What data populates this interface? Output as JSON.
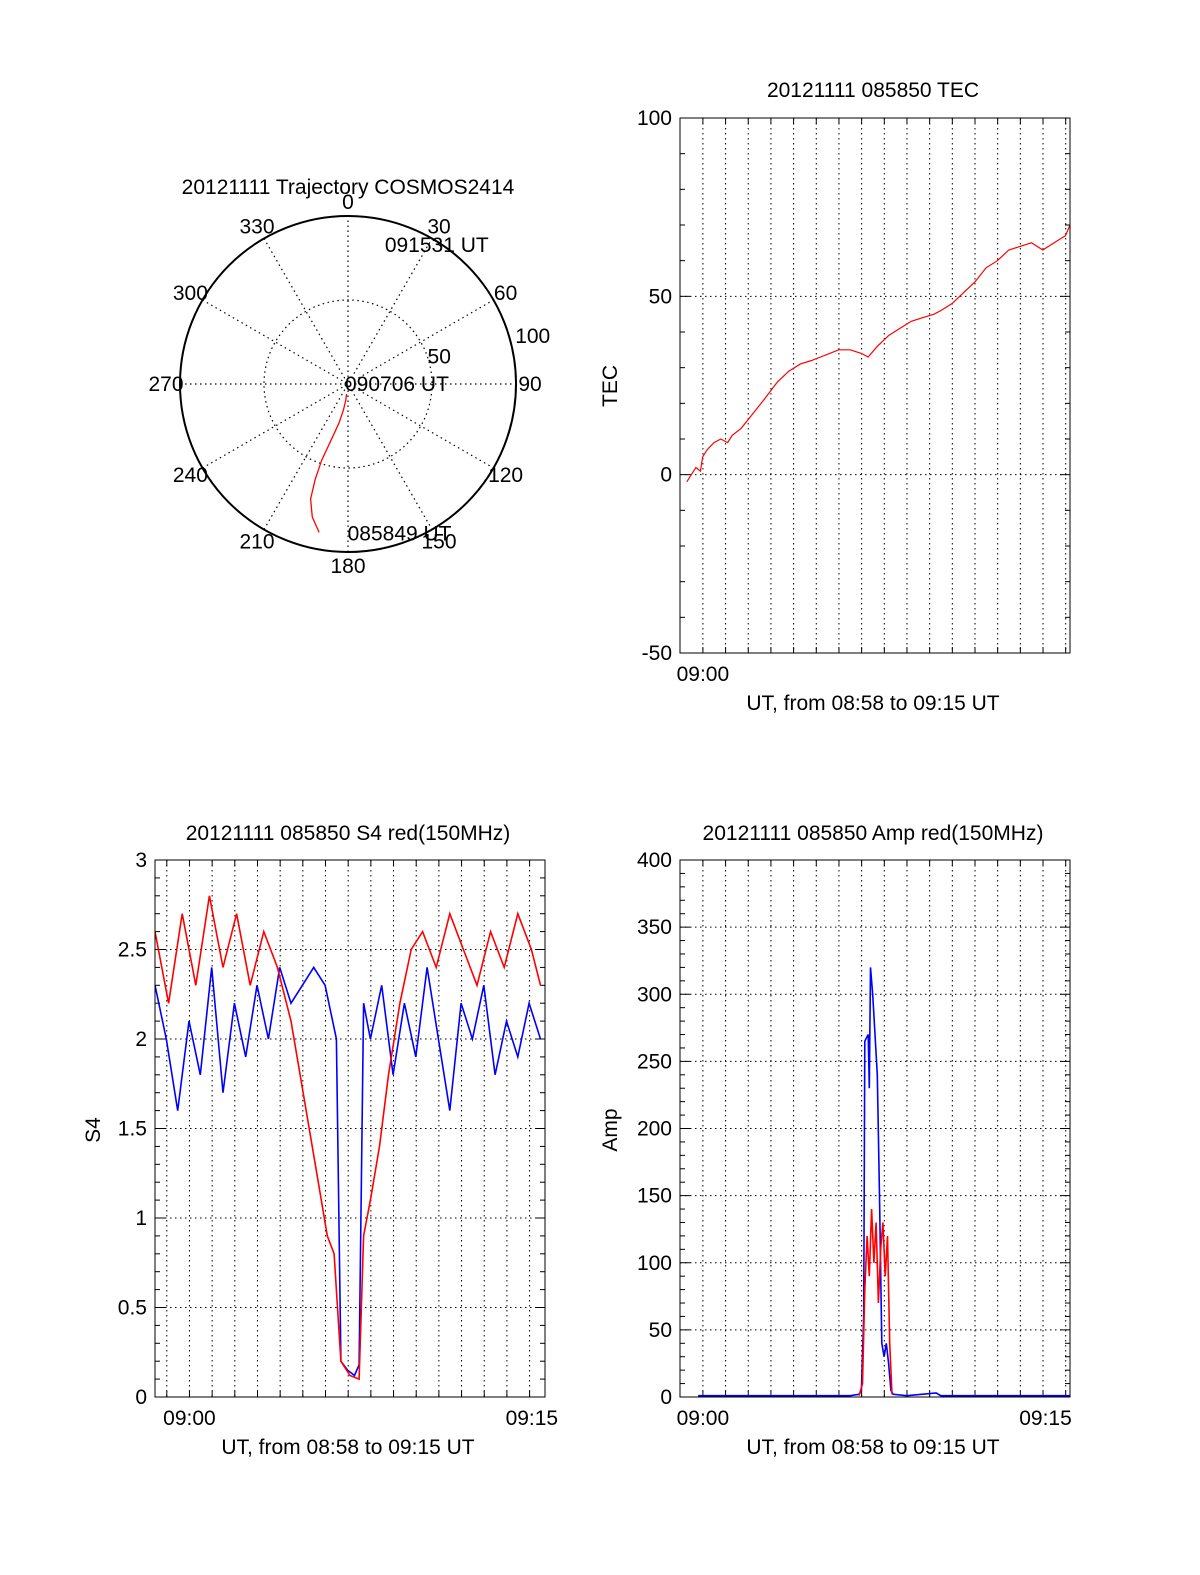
{
  "chart_data": [
    {
      "type": "polar",
      "title": "20121111 Trajectory COSMOS2414",
      "angle_labels": [
        "0",
        "30",
        "60",
        "90",
        "120",
        "150",
        "180",
        "210",
        "240",
        "270",
        "300",
        "330"
      ],
      "radial_labels": [
        "50",
        "100"
      ],
      "rlim": [
        0,
        100
      ],
      "grid": true,
      "series": [
        {
          "color": "#ff0000",
          "points": [
            [
              191,
              90
            ],
            [
              195,
              82
            ],
            [
              198,
              72
            ],
            [
              199,
              60
            ],
            [
              199,
              48
            ],
            [
              197,
              36
            ],
            [
              193,
              24
            ],
            [
              190,
              16
            ],
            [
              188,
              10
            ],
            [
              188,
              6
            ]
          ]
        }
      ],
      "annotations": [
        {
          "text": "091531 UT",
          "az": 16,
          "r": 86
        },
        {
          "text": "090706 UT",
          "az": 90,
          "r": 0
        },
        {
          "text": "085849 UT",
          "az": 179,
          "r": 89
        }
      ]
    },
    {
      "type": "line",
      "title": "20121111 085850 TEC",
      "xlabel": "UT, from 08:58 to 09:15 UT",
      "ylabel": "TEC",
      "xlim": [
        0,
        17.2
      ],
      "ylim": [
        -50,
        100
      ],
      "x_ticks": [
        {
          "x": 1.01,
          "label": "09:00"
        }
      ],
      "y_ticks": [
        -50,
        0,
        50,
        100
      ],
      "grid": true,
      "series": [
        {
          "color": "#ff0000",
          "points": [
            [
              0.3,
              -2
            ],
            [
              0.5,
              0
            ],
            [
              0.7,
              2
            ],
            [
              0.9,
              1
            ],
            [
              1.0,
              5
            ],
            [
              1.2,
              7
            ],
            [
              1.5,
              9
            ],
            [
              1.8,
              10
            ],
            [
              2.1,
              9
            ],
            [
              2.3,
              11
            ],
            [
              2.7,
              13
            ],
            [
              3.2,
              17
            ],
            [
              3.7,
              21
            ],
            [
              4.3,
              26
            ],
            [
              4.8,
              29
            ],
            [
              5.3,
              31
            ],
            [
              5.8,
              32
            ],
            [
              6.2,
              33
            ],
            [
              6.6,
              34
            ],
            [
              7.0,
              35
            ],
            [
              7.5,
              35
            ],
            [
              8.0,
              34
            ],
            [
              8.3,
              33
            ],
            [
              8.7,
              36
            ],
            [
              9.2,
              39
            ],
            [
              9.7,
              41
            ],
            [
              10.2,
              43
            ],
            [
              10.7,
              44
            ],
            [
              11.2,
              45
            ],
            [
              11.5,
              46
            ],
            [
              12.0,
              48
            ],
            [
              12.5,
              51
            ],
            [
              13.0,
              54
            ],
            [
              13.5,
              58
            ],
            [
              14.0,
              60
            ],
            [
              14.5,
              63
            ],
            [
              15.0,
              64
            ],
            [
              15.5,
              65
            ],
            [
              16.0,
              63
            ],
            [
              16.5,
              65
            ],
            [
              17.0,
              67
            ],
            [
              17.2,
              70
            ]
          ]
        }
      ]
    },
    {
      "type": "line",
      "title": "20121111 085850 S4 red(150MHz)",
      "xlabel": "UT, from 08:58 to 09:15 UT",
      "ylabel": "S4",
      "xlim": [
        0,
        17.2
      ],
      "ylim": [
        0,
        3
      ],
      "x_ticks": [
        {
          "x": 1.52,
          "label": "09:00"
        },
        {
          "x": 16.62,
          "label": "09:15"
        }
      ],
      "y_ticks": [
        0,
        0.5,
        1,
        1.5,
        2,
        2.5,
        3
      ],
      "grid": true,
      "series": [
        {
          "color": "#0000ff",
          "points": [
            [
              0.0,
              2.3
            ],
            [
              0.5,
              2.0
            ],
            [
              1.0,
              1.6
            ],
            [
              1.5,
              2.1
            ],
            [
              2.0,
              1.8
            ],
            [
              2.5,
              2.4
            ],
            [
              3.0,
              1.7
            ],
            [
              3.5,
              2.2
            ],
            [
              4.0,
              1.9
            ],
            [
              4.5,
              2.3
            ],
            [
              5.0,
              2.0
            ],
            [
              5.5,
              2.4
            ],
            [
              6.0,
              2.2
            ],
            [
              6.5,
              2.3
            ],
            [
              7.0,
              2.4
            ],
            [
              7.5,
              2.3
            ],
            [
              8.0,
              2.0
            ],
            [
              8.2,
              0.2
            ],
            [
              8.5,
              0.15
            ],
            [
              8.8,
              0.12
            ],
            [
              9.0,
              0.18
            ],
            [
              9.2,
              2.2
            ],
            [
              9.5,
              2.0
            ],
            [
              10.0,
              2.3
            ],
            [
              10.5,
              1.8
            ],
            [
              11.0,
              2.2
            ],
            [
              11.5,
              1.9
            ],
            [
              12.0,
              2.4
            ],
            [
              12.5,
              2.0
            ],
            [
              13.0,
              1.6
            ],
            [
              13.5,
              2.2
            ],
            [
              14.0,
              2.0
            ],
            [
              14.5,
              2.3
            ],
            [
              15.0,
              1.8
            ],
            [
              15.5,
              2.1
            ],
            [
              16.0,
              1.9
            ],
            [
              16.5,
              2.2
            ],
            [
              17.0,
              2.0
            ]
          ]
        },
        {
          "color": "#ff0000",
          "points": [
            [
              0.0,
              2.6
            ],
            [
              0.6,
              2.2
            ],
            [
              1.2,
              2.7
            ],
            [
              1.8,
              2.3
            ],
            [
              2.4,
              2.8
            ],
            [
              3.0,
              2.4
            ],
            [
              3.6,
              2.7
            ],
            [
              4.2,
              2.3
            ],
            [
              4.8,
              2.6
            ],
            [
              5.4,
              2.4
            ],
            [
              6.0,
              2.1
            ],
            [
              6.4,
              1.8
            ],
            [
              6.8,
              1.5
            ],
            [
              7.2,
              1.2
            ],
            [
              7.6,
              0.9
            ],
            [
              7.9,
              0.8
            ],
            [
              8.2,
              0.2
            ],
            [
              8.6,
              0.12
            ],
            [
              9.0,
              0.1
            ],
            [
              9.2,
              0.9
            ],
            [
              9.5,
              1.1
            ],
            [
              9.9,
              1.4
            ],
            [
              10.3,
              1.8
            ],
            [
              10.8,
              2.2
            ],
            [
              11.3,
              2.5
            ],
            [
              11.8,
              2.6
            ],
            [
              12.4,
              2.4
            ],
            [
              13.0,
              2.7
            ],
            [
              13.6,
              2.5
            ],
            [
              14.2,
              2.3
            ],
            [
              14.8,
              2.6
            ],
            [
              15.4,
              2.4
            ],
            [
              16.0,
              2.7
            ],
            [
              16.6,
              2.5
            ],
            [
              17.0,
              2.3
            ]
          ]
        }
      ]
    },
    {
      "type": "line",
      "title": "20121111 085850 Amp red(150MHz)",
      "xlabel": "UT, from 08:58 to 09:15 UT",
      "ylabel": "Amp",
      "xlim": [
        0,
        17.2
      ],
      "ylim": [
        0,
        400
      ],
      "x_ticks": [
        {
          "x": 1.01,
          "label": "09:00"
        },
        {
          "x": 16.12,
          "label": "09:15"
        }
      ],
      "y_ticks": [
        0,
        50,
        100,
        150,
        200,
        250,
        300,
        350,
        400
      ],
      "grid": true,
      "series": [
        {
          "color": "#0000ff",
          "points": [
            [
              0.8,
              1
            ],
            [
              3,
              1
            ],
            [
              5,
              1
            ],
            [
              7.5,
              1
            ],
            [
              7.9,
              2
            ],
            [
              8.0,
              5
            ],
            [
              8.1,
              60
            ],
            [
              8.15,
              265
            ],
            [
              8.3,
              270
            ],
            [
              8.35,
              230
            ],
            [
              8.4,
              320
            ],
            [
              8.5,
              300
            ],
            [
              8.6,
              270
            ],
            [
              8.7,
              240
            ],
            [
              8.8,
              150
            ],
            [
              8.9,
              40
            ],
            [
              9.0,
              30
            ],
            [
              9.1,
              40
            ],
            [
              9.2,
              25
            ],
            [
              9.3,
              5
            ],
            [
              9.4,
              2
            ],
            [
              10,
              1
            ],
            [
              11.3,
              3
            ],
            [
              11.5,
              1
            ],
            [
              13,
              1
            ],
            [
              15,
              1
            ],
            [
              17.2,
              1
            ]
          ]
        },
        {
          "color": "#ff0000",
          "points": [
            [
              7.9,
              1
            ],
            [
              8.05,
              10
            ],
            [
              8.15,
              80
            ],
            [
              8.25,
              120
            ],
            [
              8.35,
              90
            ],
            [
              8.45,
              140
            ],
            [
              8.55,
              100
            ],
            [
              8.65,
              130
            ],
            [
              8.75,
              70
            ],
            [
              8.85,
              110
            ],
            [
              8.95,
              130
            ],
            [
              9.05,
              90
            ],
            [
              9.15,
              120
            ],
            [
              9.25,
              40
            ],
            [
              9.35,
              2
            ]
          ]
        }
      ]
    }
  ]
}
